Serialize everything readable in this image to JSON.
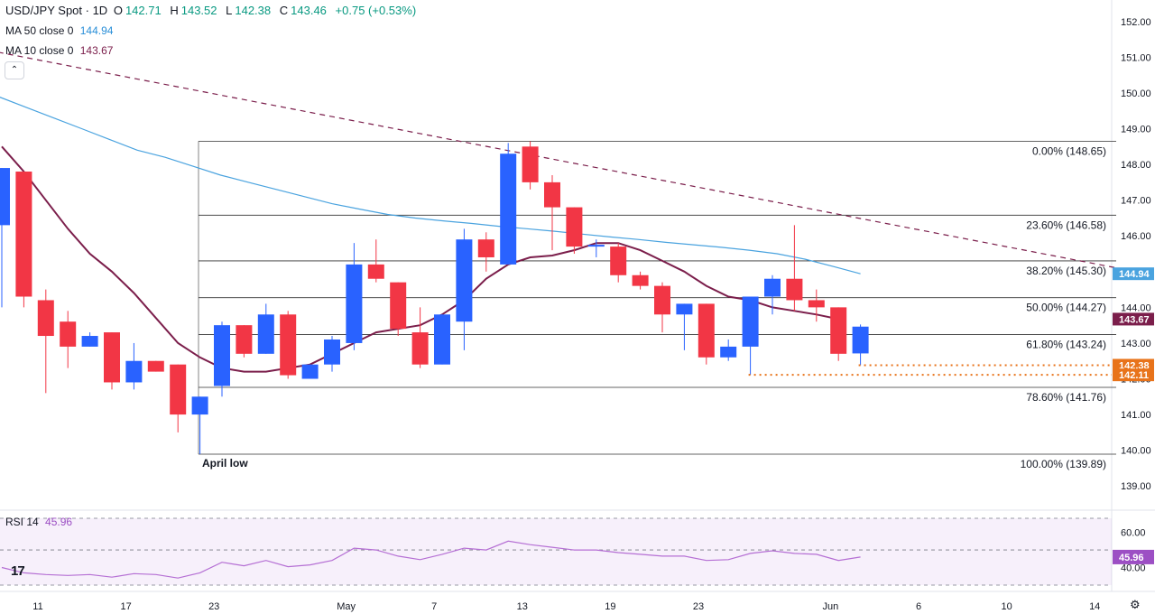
{
  "header": {
    "symbol": "USD/JPY Spot · 1D",
    "open_label": "O",
    "open": "142.71",
    "high_label": "H",
    "high": "143.52",
    "low_label": "L",
    "low": "142.38",
    "close_label": "C",
    "close": "143.46",
    "change": "+0.75 (+0.53%)"
  },
  "indicators": {
    "ma50_label": "MA 50 close 0",
    "ma50_value": "144.94",
    "ma10_label": "MA 10 close 0",
    "ma10_value": "143.67",
    "rsi_label": "RSI 14",
    "rsi_value": "45.96"
  },
  "colors": {
    "up": "#2962ff",
    "down": "#f23645",
    "ma50": "#4aa3df",
    "ma10": "#7b1e4b",
    "rsi": "#b56fd4",
    "trend": "#7b1e4b",
    "dotted": "#e8731a",
    "fib": "#333333"
  },
  "icons": {
    "collapse": "chevron-up-icon",
    "logo": "tradingview-logo",
    "settings": "gear-icon"
  },
  "chart_data": {
    "type": "candlestick",
    "ylim": [
      138.5,
      152.4
    ],
    "y_ticks": [
      "152.00",
      "151.00",
      "150.00",
      "149.00",
      "148.00",
      "147.00",
      "146.00",
      "145.00",
      "144.00",
      "143.00",
      "142.00",
      "141.00",
      "140.00",
      "139.00"
    ],
    "x_labels": [
      {
        "text": "11",
        "i": 0
      },
      {
        "text": "17",
        "i": 4
      },
      {
        "text": "23",
        "i": 8
      },
      {
        "text": "May",
        "i": 14
      },
      {
        "text": "7",
        "i": 18
      },
      {
        "text": "13",
        "i": 22
      },
      {
        "text": "19",
        "i": 26
      },
      {
        "text": "23",
        "i": 30
      },
      {
        "text": "Jun",
        "i": 36
      },
      {
        "text": "6",
        "i": 40
      },
      {
        "text": "10",
        "i": 44
      },
      {
        "text": "14",
        "i": 48
      }
    ],
    "candles": [
      {
        "o": 146.3,
        "h": 147.9,
        "l": 144.0,
        "c": 147.9
      },
      {
        "o": 147.8,
        "h": 147.8,
        "l": 144.0,
        "c": 144.3
      },
      {
        "o": 144.2,
        "h": 144.5,
        "l": 141.6,
        "c": 143.2
      },
      {
        "o": 143.6,
        "h": 143.9,
        "l": 142.3,
        "c": 142.9
      },
      {
        "o": 142.9,
        "h": 143.3,
        "l": 142.9,
        "c": 143.2
      },
      {
        "o": 143.3,
        "h": 143.3,
        "l": 141.7,
        "c": 141.9
      },
      {
        "o": 141.9,
        "h": 143.0,
        "l": 141.7,
        "c": 142.5
      },
      {
        "o": 142.5,
        "h": 142.5,
        "l": 142.2,
        "c": 142.2
      },
      {
        "o": 142.4,
        "h": 142.4,
        "l": 140.5,
        "c": 141.0
      },
      {
        "o": 141.0,
        "h": 141.5,
        "l": 139.89,
        "c": 141.5
      },
      {
        "o": 141.8,
        "h": 143.6,
        "l": 141.5,
        "c": 143.5
      },
      {
        "o": 143.5,
        "h": 143.5,
        "l": 142.6,
        "c": 142.7
      },
      {
        "o": 142.7,
        "h": 144.1,
        "l": 142.7,
        "c": 143.8
      },
      {
        "o": 143.8,
        "h": 143.9,
        "l": 142.0,
        "c": 142.1
      },
      {
        "o": 142.0,
        "h": 142.4,
        "l": 142.0,
        "c": 142.4
      },
      {
        "o": 142.4,
        "h": 143.2,
        "l": 142.2,
        "c": 143.1
      },
      {
        "o": 143.0,
        "h": 145.8,
        "l": 142.8,
        "c": 145.2
      },
      {
        "o": 145.2,
        "h": 145.9,
        "l": 144.7,
        "c": 144.8
      },
      {
        "o": 144.7,
        "h": 144.7,
        "l": 143.2,
        "c": 143.4
      },
      {
        "o": 143.3,
        "h": 144.0,
        "l": 142.3,
        "c": 142.4
      },
      {
        "o": 142.4,
        "h": 143.8,
        "l": 142.4,
        "c": 143.8
      },
      {
        "o": 143.6,
        "h": 146.2,
        "l": 142.8,
        "c": 145.9
      },
      {
        "o": 145.9,
        "h": 146.1,
        "l": 145.0,
        "c": 145.4
      },
      {
        "o": 145.2,
        "h": 148.6,
        "l": 145.2,
        "c": 148.3
      },
      {
        "o": 148.5,
        "h": 148.65,
        "l": 147.3,
        "c": 147.5
      },
      {
        "o": 147.5,
        "h": 147.7,
        "l": 145.6,
        "c": 146.8
      },
      {
        "o": 146.8,
        "h": 146.8,
        "l": 145.5,
        "c": 145.7
      },
      {
        "o": 145.7,
        "h": 145.9,
        "l": 145.4,
        "c": 145.75
      },
      {
        "o": 145.7,
        "h": 145.8,
        "l": 144.7,
        "c": 144.9
      },
      {
        "o": 144.9,
        "h": 145.0,
        "l": 144.5,
        "c": 144.6
      },
      {
        "o": 144.6,
        "h": 144.7,
        "l": 143.3,
        "c": 143.8
      },
      {
        "o": 143.8,
        "h": 144.1,
        "l": 142.8,
        "c": 144.1
      },
      {
        "o": 144.1,
        "h": 144.1,
        "l": 142.4,
        "c": 142.6
      },
      {
        "o": 142.6,
        "h": 143.1,
        "l": 142.5,
        "c": 142.9
      },
      {
        "o": 142.9,
        "h": 144.3,
        "l": 142.11,
        "c": 144.3
      },
      {
        "o": 144.3,
        "h": 144.9,
        "l": 143.8,
        "c": 144.8
      },
      {
        "o": 144.8,
        "h": 146.3,
        "l": 143.9,
        "c": 144.2
      },
      {
        "o": 144.2,
        "h": 144.5,
        "l": 143.6,
        "c": 144.0
      },
      {
        "o": 144.0,
        "h": 144.0,
        "l": 142.5,
        "c": 142.7
      },
      {
        "o": 142.71,
        "h": 143.52,
        "l": 142.38,
        "c": 143.46
      }
    ],
    "ma10": [
      148.5,
      147.8,
      147.0,
      146.2,
      145.5,
      145.0,
      144.4,
      143.7,
      143.0,
      142.6,
      142.3,
      142.2,
      142.2,
      142.3,
      142.4,
      142.7,
      143.0,
      143.3,
      143.4,
      143.5,
      143.8,
      144.2,
      144.8,
      145.2,
      145.4,
      145.45,
      145.6,
      145.8,
      145.8,
      145.6,
      145.3,
      145.0,
      144.6,
      144.3,
      144.2,
      144.0,
      143.9,
      143.8,
      143.67
    ],
    "ma50": [
      149.9,
      149.6,
      149.3,
      149.0,
      148.7,
      148.4,
      148.2,
      147.95,
      147.7,
      147.5,
      147.3,
      147.1,
      146.9,
      146.75,
      146.6,
      146.5,
      146.42,
      146.35,
      146.27,
      146.2,
      146.13,
      146.05,
      145.97,
      145.9,
      145.82,
      145.75,
      145.68,
      145.6,
      145.5,
      145.35,
      145.15,
      144.94
    ],
    "ma50_start_index": 8,
    "rsi": [
      40,
      37,
      36,
      35.5,
      36,
      34.5,
      36.5,
      36,
      34,
      37,
      43,
      41,
      44,
      40.5,
      41.5,
      44,
      51,
      50,
      46.5,
      44.5,
      47.5,
      51,
      50,
      55,
      53,
      51.5,
      50,
      50,
      48.5,
      47.5,
      46.5,
      46.5,
      44,
      44.5,
      48,
      49.5,
      48,
      47.5,
      44,
      45.96
    ],
    "rsi_ylim": [
      30,
      68
    ],
    "rsi_ticks": [
      "60.00",
      "40.00"
    ],
    "fib_levels": [
      {
        "label": "0.00% (148.65)",
        "price": 148.65
      },
      {
        "label": "23.60% (146.58)",
        "price": 146.58
      },
      {
        "label": "38.20% (145.30)",
        "price": 145.3
      },
      {
        "label": "50.00% (144.27)",
        "price": 144.27
      },
      {
        "label": "61.80% (143.24)",
        "price": 143.24
      },
      {
        "label": "78.60% (141.76)",
        "price": 141.76
      },
      {
        "label": "100.00% (139.89)",
        "price": 139.89
      }
    ],
    "annotation": "April low",
    "support_levels": [
      {
        "price": 142.38,
        "label": "142.38",
        "from_index": 39
      },
      {
        "price": 142.11,
        "label": "142.11",
        "from_index": 34
      }
    ],
    "trendline": [
      {
        "i": -1.5,
        "p": 151.3
      },
      {
        "i": 51.5,
        "p": 145.0
      }
    ],
    "price_badges": [
      {
        "label": "144.94",
        "price": 144.94,
        "color": "#4aa3df"
      },
      {
        "label": "143.67",
        "price": 143.67,
        "color": "#7b1e4b"
      },
      {
        "label": "142.38",
        "price": 142.38,
        "color": "#e8731a"
      },
      {
        "label": "142.11",
        "price": 142.11,
        "color": "#e8731a"
      }
    ],
    "rsi_badge": "45.96"
  }
}
